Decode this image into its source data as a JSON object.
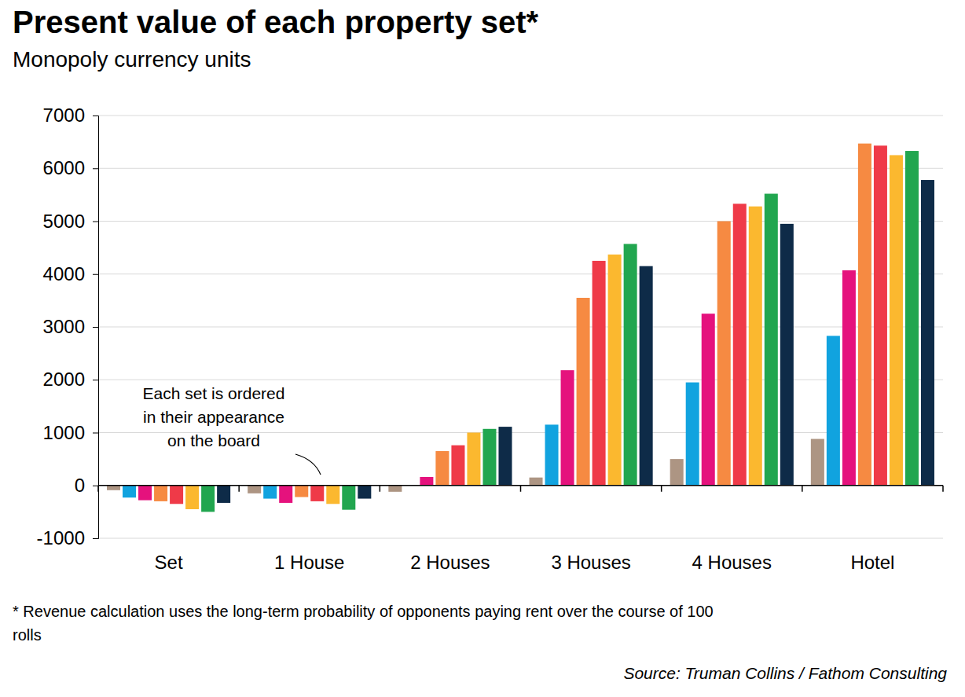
{
  "chart_data": {
    "type": "bar",
    "title": "Present value of each property set*",
    "subtitle": "Monopoly currency units",
    "categories": [
      "Set",
      "1 House",
      "2 Houses",
      "3 Houses",
      "4 Houses",
      "Hotel"
    ],
    "series": [
      {
        "color": "#ad9583",
        "values": [
          -90,
          -150,
          -120,
          150,
          500,
          880
        ]
      },
      {
        "color": "#11a3df",
        "values": [
          -230,
          -250,
          0,
          1150,
          1950,
          2830
        ]
      },
      {
        "color": "#e5127d",
        "values": [
          -280,
          -330,
          160,
          2180,
          3250,
          4070
        ]
      },
      {
        "color": "#f68a42",
        "values": [
          -300,
          -220,
          650,
          3550,
          5000,
          6470
        ]
      },
      {
        "color": "#ef3a48",
        "values": [
          -350,
          -300,
          760,
          4250,
          5330,
          6430
        ]
      },
      {
        "color": "#fbb82f",
        "values": [
          -450,
          -350,
          1000,
          4370,
          5280,
          6250
        ]
      },
      {
        "color": "#21a64f",
        "values": [
          -500,
          -460,
          1070,
          4570,
          5520,
          6330
        ]
      },
      {
        "color": "#0e2b48",
        "values": [
          -330,
          -250,
          1110,
          4150,
          4950,
          5780
        ]
      }
    ],
    "ylim": [
      -1000,
      7000
    ],
    "yticks": [
      -1000,
      0,
      1000,
      2000,
      3000,
      4000,
      5000,
      6000,
      7000
    ],
    "grid": true,
    "annotation": [
      "Each set is ordered",
      "in their appearance",
      "on the board"
    ],
    "footnote": [
      "* Revenue calculation uses the long-term probability of opponents paying rent over the course of 100",
      "rolls"
    ],
    "source": "Source: Truman Collins / Fathom Consulting"
  }
}
